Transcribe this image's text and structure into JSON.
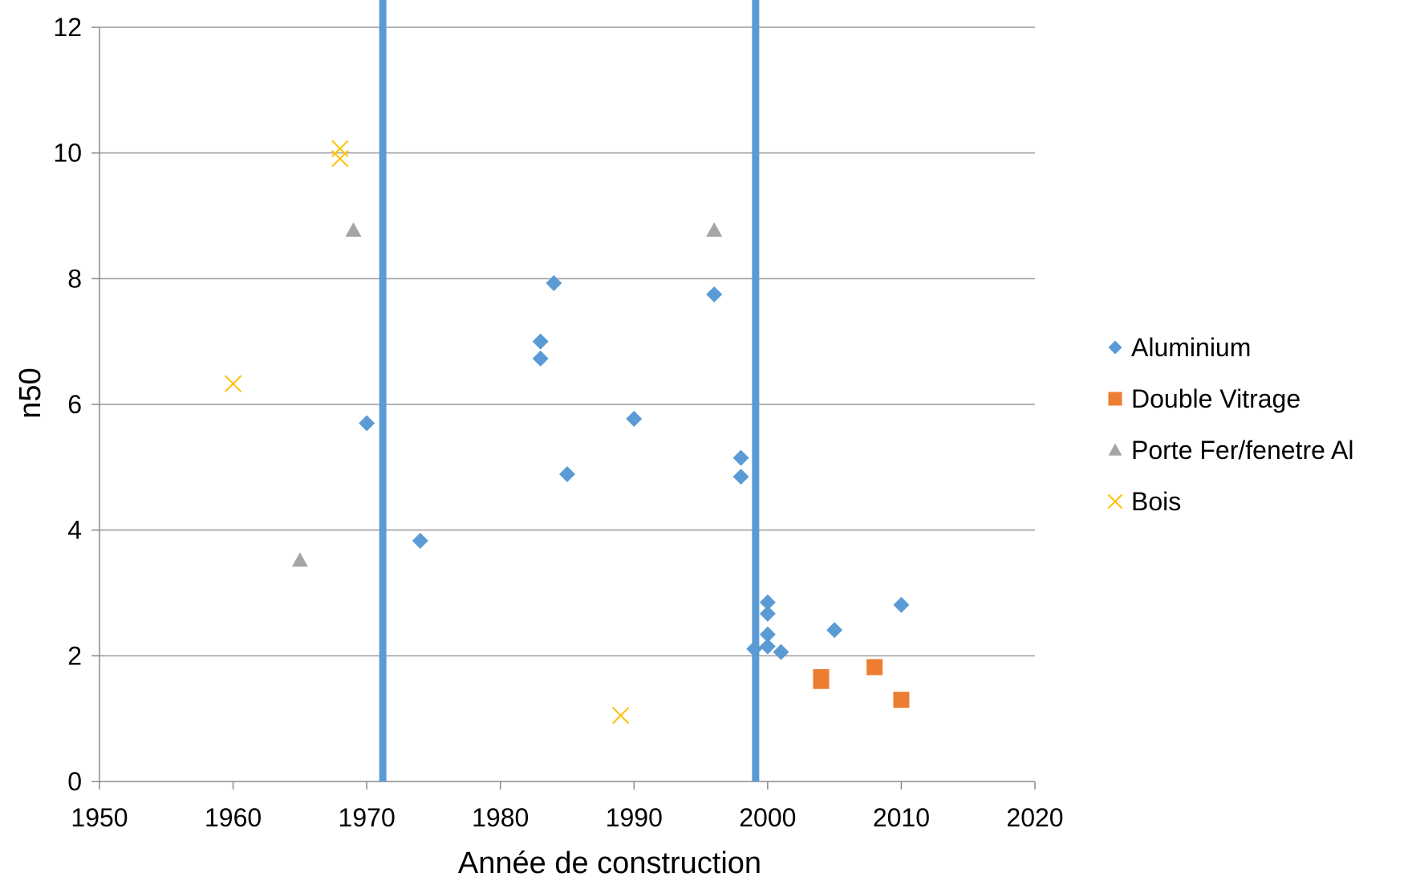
{
  "chart_data": {
    "type": "scatter",
    "title": "",
    "xlabel": "Année de construction",
    "ylabel": "n50",
    "xlim": [
      1950,
      2020
    ],
    "ylim": [
      0,
      12
    ],
    "x_ticks": [
      "1950",
      "1960",
      "1970",
      "1980",
      "1990",
      "2000",
      "2010",
      "2020"
    ],
    "y_ticks": [
      "0",
      "2",
      "4",
      "6",
      "8",
      "10",
      "12"
    ],
    "grid": "horizontal",
    "legend_position": "right",
    "vertical_lines": [
      {
        "x": 1971.2,
        "color": "#5B9BD5"
      },
      {
        "x": 1999.1,
        "color": "#5B9BD5"
      }
    ],
    "series": [
      {
        "name": "Aluminium",
        "marker": "diamond",
        "color": "#5B9BD5",
        "points": [
          [
            1970,
            5.7
          ],
          [
            1974,
            3.83
          ],
          [
            1983,
            7.0
          ],
          [
            1983,
            6.73
          ],
          [
            1984,
            7.93
          ],
          [
            1985,
            4.89
          ],
          [
            1990,
            5.77
          ],
          [
            1996,
            7.75
          ],
          [
            1998,
            5.15
          ],
          [
            1998,
            4.85
          ],
          [
            1999,
            2.11
          ],
          [
            2000,
            2.85
          ],
          [
            2000,
            2.67
          ],
          [
            2000,
            2.34
          ],
          [
            2000,
            2.15
          ],
          [
            2001,
            2.06
          ],
          [
            2005,
            2.41
          ],
          [
            2010,
            2.81
          ]
        ]
      },
      {
        "name": "Double Vitrage",
        "marker": "square",
        "color": "#ED7D31",
        "points": [
          [
            2004,
            1.66
          ],
          [
            2004,
            1.6
          ],
          [
            2008,
            1.82
          ],
          [
            2010,
            1.3
          ]
        ]
      },
      {
        "name": "Porte Fer/fenetre Al",
        "marker": "triangle",
        "color": "#A5A5A5",
        "points": [
          [
            1965,
            3.52
          ],
          [
            1969,
            8.77
          ],
          [
            1996,
            8.77
          ]
        ]
      },
      {
        "name": "Bois",
        "marker": "x",
        "color": "#FFC000",
        "points": [
          [
            1960,
            6.33
          ],
          [
            1968,
            10.07
          ],
          [
            1968,
            9.91
          ],
          [
            1989,
            1.05
          ]
        ]
      }
    ]
  }
}
